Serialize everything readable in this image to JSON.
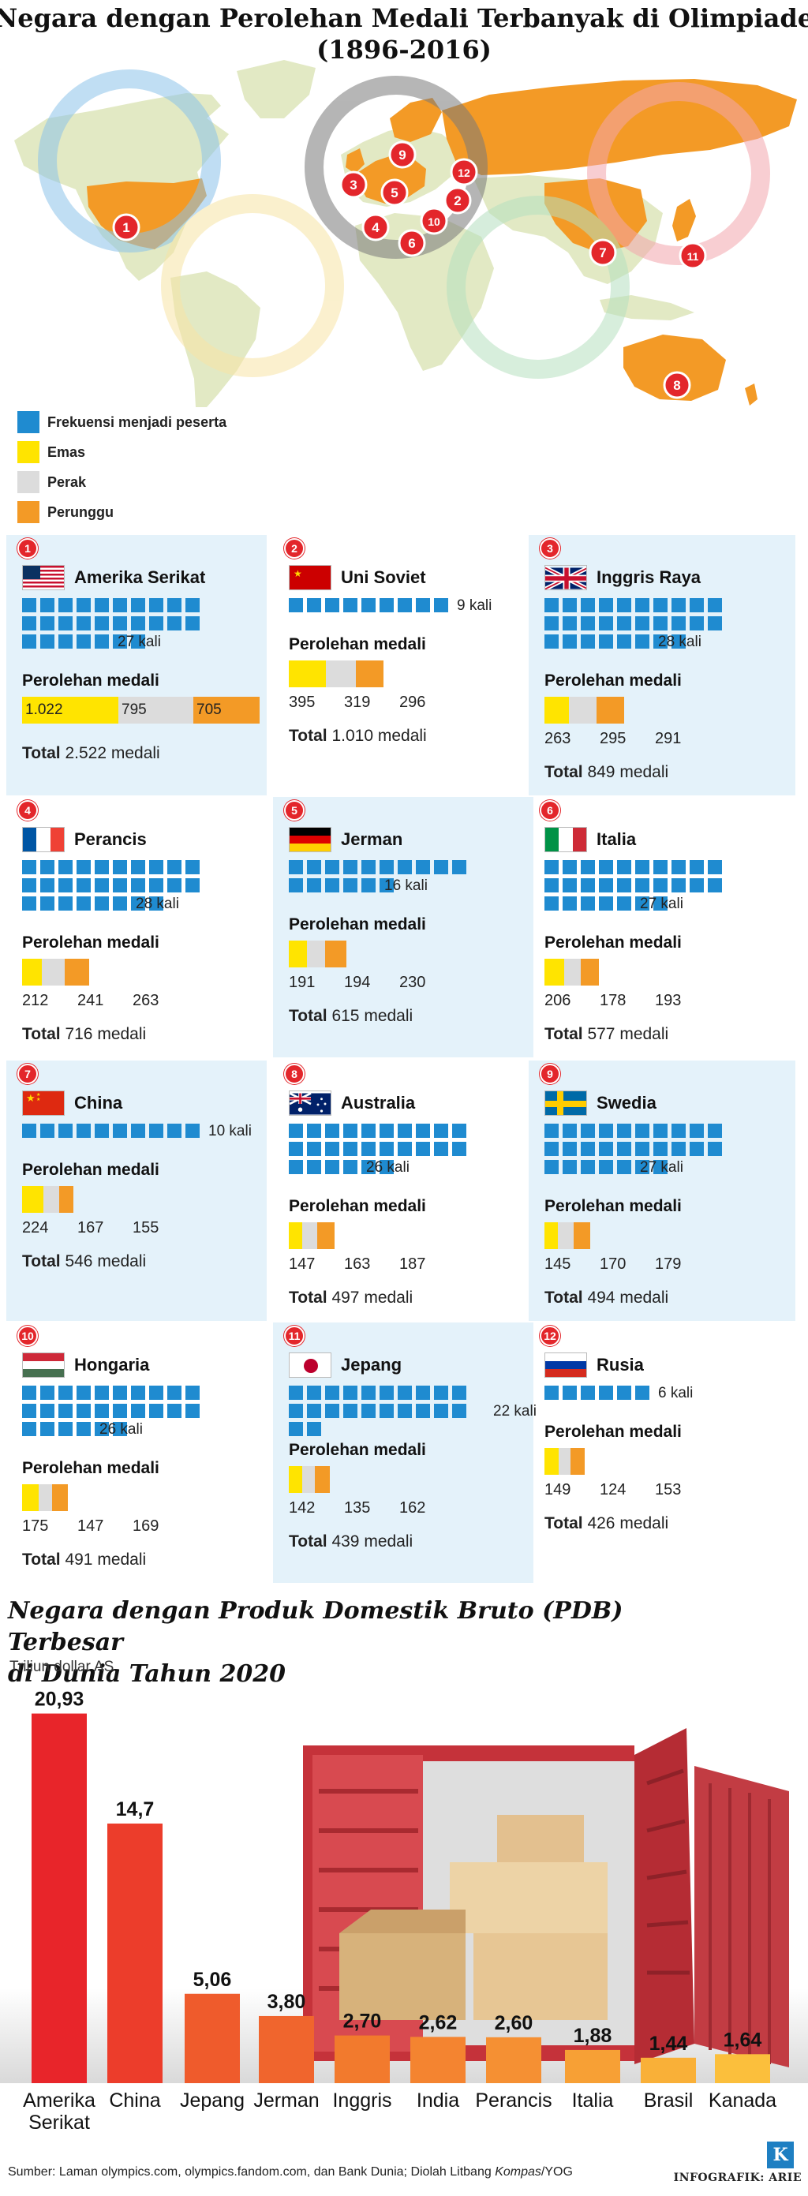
{
  "title": "Negara dengan Perolehan Medali Terbanyak di Olimpiade (1896-2016)",
  "title_line1": "Negara dengan Perolehan Medali Terbanyak di Olimpiade",
  "title_line2": "(1896-2016)",
  "legend": [
    {
      "label": "Frekuensi menjadi peserta",
      "color": "#1f8bd0"
    },
    {
      "label": "Emas",
      "color": "#ffe400"
    },
    {
      "label": "Perak",
      "color": "#dcdcdc"
    },
    {
      "label": "Perunggu",
      "color": "#f39a26"
    }
  ],
  "map_markers": [
    "1",
    "2",
    "3",
    "4",
    "5",
    "6",
    "7",
    "8",
    "9",
    "10",
    "11",
    "12"
  ],
  "medal_label": "Perolehan medali",
  "total_label": "Total",
  "countries": [
    {
      "rank": "1",
      "name": "Amerika Serikat",
      "participations": 27,
      "times_text": "27 kali",
      "gold": "1.022",
      "silver": "795",
      "bronze": "705",
      "total": "2.522 medali",
      "flag": "us-flag-icon"
    },
    {
      "rank": "2",
      "name": "Uni Soviet",
      "participations": 9,
      "times_text": "9 kali",
      "gold": "395",
      "silver": "319",
      "bronze": "296",
      "total": "1.010 medali",
      "flag": "ussr-flag-icon"
    },
    {
      "rank": "3",
      "name": "Inggris Raya",
      "participations": 28,
      "times_text": "28 kali",
      "gold": "263",
      "silver": "295",
      "bronze": "291",
      "total": "849 medali",
      "flag": "uk-flag-icon"
    },
    {
      "rank": "4",
      "name": "Perancis",
      "participations": 28,
      "times_text": "28 kali",
      "gold": "212",
      "silver": "241",
      "bronze": "263",
      "total": "716 medali",
      "flag": "france-flag-icon"
    },
    {
      "rank": "5",
      "name": "Jerman",
      "participations": 16,
      "times_text": "16 kali",
      "gold": "191",
      "silver": "194",
      "bronze": "230",
      "total": "615 medali",
      "flag": "germany-flag-icon"
    },
    {
      "rank": "6",
      "name": "Italia",
      "participations": 27,
      "times_text": "27 kali",
      "gold": "206",
      "silver": "178",
      "bronze": "193",
      "total": "577 medali",
      "flag": "italy-flag-icon"
    },
    {
      "rank": "7",
      "name": "China",
      "participations": 10,
      "times_text": "10 kali",
      "gold": "224",
      "silver": "167",
      "bronze": "155",
      "total": "546 medali",
      "flag": "china-flag-icon"
    },
    {
      "rank": "8",
      "name": "Australia",
      "participations": 26,
      "times_text": "26 kali",
      "gold": "147",
      "silver": "163",
      "bronze": "187",
      "total": "497 medali",
      "flag": "australia-flag-icon"
    },
    {
      "rank": "9",
      "name": "Swedia",
      "participations": 27,
      "times_text": "27 kali",
      "gold": "145",
      "silver": "170",
      "bronze": "179",
      "total": "494 medali",
      "flag": "sweden-flag-icon"
    },
    {
      "rank": "10",
      "name": "Hongaria",
      "participations": 26,
      "times_text": "26 kali",
      "gold": "175",
      "silver": "147",
      "bronze": "169",
      "total": "491 medali",
      "flag": "hungary-flag-icon"
    },
    {
      "rank": "11",
      "name": "Jepang",
      "participations": 22,
      "times_text": "22 kali",
      "gold": "142",
      "silver": "135",
      "bronze": "162",
      "total": "439 medali",
      "flag": "japan-flag-icon"
    },
    {
      "rank": "12",
      "name": "Rusia",
      "participations": 6,
      "times_text": "6 kali",
      "gold": "149",
      "silver": "124",
      "bronze": "153",
      "total": "426 medali",
      "flag": "russia-flag-icon"
    }
  ],
  "gdp": {
    "title_line1": "Negara dengan Produk Domestik Bruto (PDB) Terbesar",
    "title_line2": "di Dunia Tahun 2020",
    "unit": "Triliun dollar AS",
    "source_prefix": "Sumber: Laman olympics.com, olympics.fandom.com, dan Bank Dunia; Diolah Litbang ",
    "source_italic": "Kompas",
    "source_suffix": "/YOG",
    "credit": "INFOGRAFIK: ARIE",
    "logo": "K"
  },
  "chart_data": {
    "type": "bar",
    "title": "Negara dengan Produk Domestik Bruto (PDB) Terbesar di Dunia Tahun 2020",
    "ylabel": "Triliun dollar AS",
    "categories": [
      "Amerika Serikat",
      "China",
      "Jepang",
      "Jerman",
      "Inggris",
      "India",
      "Perancis",
      "Italia",
      "Brasil",
      "Kanada"
    ],
    "value_labels": [
      "20,93",
      "14,7",
      "5,06",
      "3,80",
      "2,70",
      "2,62",
      "2,60",
      "1,88",
      "1,44",
      "1,64"
    ],
    "values": [
      20.93,
      14.7,
      5.06,
      3.8,
      2.7,
      2.62,
      2.6,
      1.88,
      1.44,
      1.64
    ],
    "ylim": [
      0,
      21
    ],
    "grid": false,
    "legend": "none",
    "colors": [
      "#e8252a",
      "#ec3d2b",
      "#ef5b2c",
      "#f0652d",
      "#f27a2d",
      "#f48430",
      "#f59033",
      "#f7a035",
      "#f9b038",
      "#fbbf3c"
    ]
  }
}
